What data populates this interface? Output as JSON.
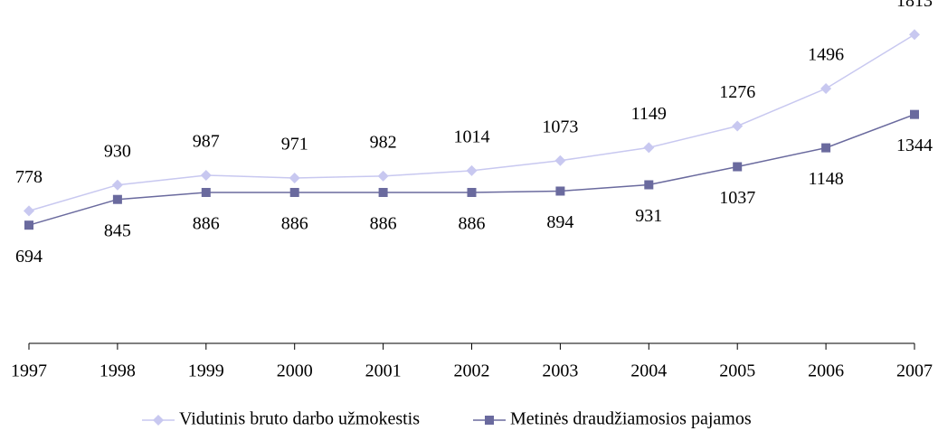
{
  "chart_data": {
    "type": "line",
    "categories": [
      "1997",
      "1998",
      "1999",
      "2000",
      "2001",
      "2002",
      "2003",
      "2004",
      "2005",
      "2006",
      "2007"
    ],
    "series": [
      {
        "name": "Vidutinis bruto darbo užmokestis",
        "color": "#c8c8f0",
        "marker": "diamond",
        "values": [
          778,
          930,
          987,
          971,
          982,
          1014,
          1073,
          1149,
          1276,
          1496,
          1813
        ]
      },
      {
        "name": "Metinės draudžiamosios pajamos",
        "color": "#6a6a9e",
        "marker": "square",
        "values": [
          694,
          845,
          886,
          886,
          886,
          886,
          894,
          931,
          1037,
          1148,
          1344
        ]
      }
    ],
    "ylim": [
      0,
      2000
    ],
    "legend": "bottom"
  }
}
